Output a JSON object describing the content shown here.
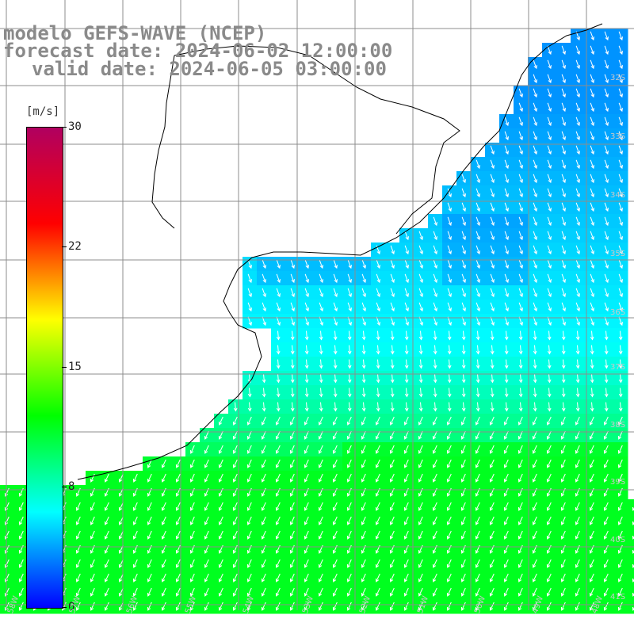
{
  "header": {
    "line1": "modelo GEFS-WAVE (NCEP)",
    "line2": "forecast date: 2024-06-02 12:00:00",
    "line3": "valid date: 2024-06-05 03:00:00"
  },
  "colorbar": {
    "unit": "[m/s]",
    "ticks": [
      "30",
      "22",
      "15",
      "8",
      "0"
    ],
    "stops": [
      "#0000ff",
      "#00ffff",
      "#00ff00",
      "#ffff00",
      "#ff0000",
      "#b00060"
    ]
  },
  "map": {
    "land_color": "#ffffff",
    "coast_color": "#000000",
    "grid_color": "#8c8c8c",
    "arrow_color": "#ffffff",
    "lat_labels": [
      "32S",
      "33S",
      "34S",
      "35S",
      "36S",
      "37S",
      "38S",
      "39S",
      "40S",
      "41S"
    ],
    "lon_labels": [
      "58W",
      "57W",
      "56W",
      "55W",
      "54W",
      "53W",
      "52W",
      "51W",
      "50W",
      "49W",
      "48W"
    ]
  }
}
